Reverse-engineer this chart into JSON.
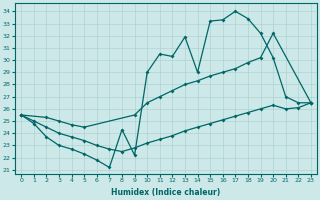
{
  "xlabel": "Humidex (Indice chaleur)",
  "bg_color": "#cce8e8",
  "grid_color": "#aacccc",
  "line_color": "#006666",
  "xlim": [
    -0.5,
    23.5
  ],
  "ylim": [
    20.7,
    34.7
  ],
  "yticks": [
    21,
    22,
    23,
    24,
    25,
    26,
    27,
    28,
    29,
    30,
    31,
    32,
    33,
    34
  ],
  "xticks": [
    0,
    1,
    2,
    3,
    4,
    5,
    6,
    7,
    8,
    9,
    10,
    11,
    12,
    13,
    14,
    15,
    16,
    17,
    18,
    19,
    20,
    21,
    22,
    23
  ],
  "line1_x": [
    0,
    1,
    2,
    3,
    4,
    5,
    6,
    7,
    8,
    9,
    10,
    11,
    12,
    13,
    14,
    15,
    16,
    17,
    18,
    19,
    20,
    21,
    22,
    23
  ],
  "line1_y": [
    25.5,
    24.8,
    23.7,
    23.0,
    22.7,
    22.3,
    21.8,
    21.2,
    24.3,
    22.2,
    29.0,
    30.5,
    30.3,
    31.9,
    29.0,
    33.2,
    33.3,
    34.0,
    33.4,
    32.2,
    30.2,
    27.0,
    26.5,
    26.5
  ],
  "line2_x": [
    0,
    2,
    3,
    4,
    5,
    9,
    10,
    11,
    12,
    13,
    14,
    15,
    16,
    17,
    18,
    19,
    20,
    23
  ],
  "line2_y": [
    25.5,
    25.3,
    25.0,
    24.7,
    24.5,
    25.5,
    26.5,
    27.0,
    27.5,
    28.0,
    28.3,
    28.7,
    29.0,
    29.3,
    29.8,
    30.2,
    32.2,
    26.5
  ],
  "line3_x": [
    0,
    1,
    2,
    3,
    4,
    5,
    6,
    7,
    8,
    9,
    10,
    11,
    12,
    13,
    14,
    15,
    16,
    17,
    18,
    19,
    20,
    21,
    22,
    23
  ],
  "line3_y": [
    25.5,
    25.0,
    24.5,
    24.0,
    23.7,
    23.4,
    23.0,
    22.7,
    22.5,
    22.8,
    23.2,
    23.5,
    23.8,
    24.2,
    24.5,
    24.8,
    25.1,
    25.4,
    25.7,
    26.0,
    26.3,
    26.0,
    26.1,
    26.5
  ]
}
